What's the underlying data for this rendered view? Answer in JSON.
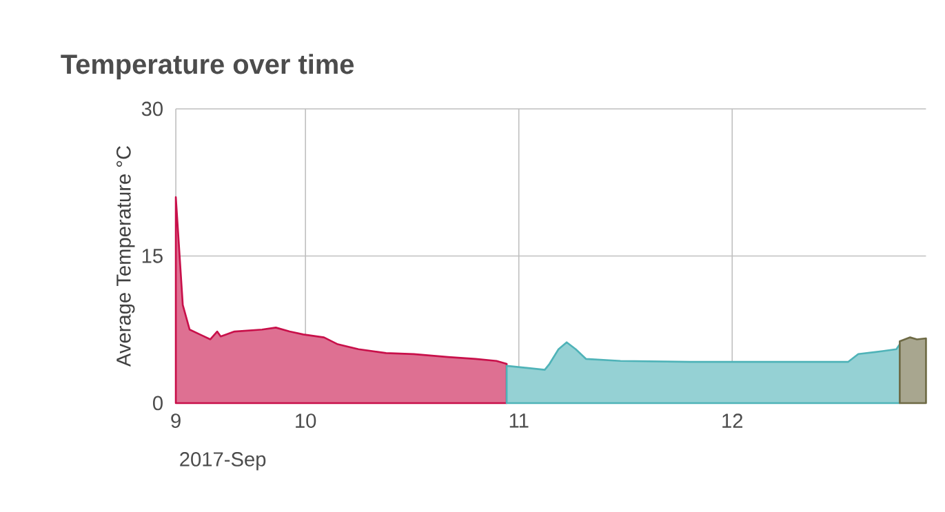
{
  "chart_data": {
    "type": "area",
    "title": "Temperature over time",
    "xlabel": "2017-Sep",
    "ylabel": "Average Temperature °C",
    "xlim": [
      "2017-09-09T09:25",
      "2017-09-12T21:48"
    ],
    "ylim": [
      0,
      30
    ],
    "yticks": [
      0,
      15,
      30
    ],
    "xticks": [
      {
        "value": "2017-09-09T09:25",
        "label": "9"
      },
      {
        "value": "2017-09-10",
        "label": "10"
      },
      {
        "value": "2017-09-11",
        "label": "11"
      },
      {
        "value": "2017-09-12",
        "label": "12"
      }
    ],
    "grid": true,
    "series": [
      {
        "color": "#c8104a",
        "x": [
          "2017-09-09T09:25",
          "2017-09-09T10:12",
          "2017-09-09T10:58",
          "2017-09-09T12:08",
          "2017-09-09T13:18",
          "2017-09-09T14:04",
          "2017-09-09T14:28",
          "2017-09-09T16:01",
          "2017-09-09T19:07",
          "2017-09-09T20:40",
          "2017-09-09T22:13",
          "2017-09-09T23:46",
          "2017-09-10T02:05",
          "2017-09-10T03:38",
          "2017-09-10T05:58",
          "2017-09-10T09:04",
          "2017-09-10T12:11",
          "2017-09-10T16:03",
          "2017-09-10T19:09",
          "2017-09-10T21:29",
          "2017-09-10T22:38"
        ],
        "values": [
          21,
          10,
          7.5,
          7,
          6.5,
          7.3,
          6.8,
          7.3,
          7.5,
          7.7,
          7.3,
          7,
          6.7,
          6,
          5.5,
          5.1,
          5,
          4.7,
          4.5,
          4.3,
          4
        ]
      },
      {
        "color": "#4fb3b8",
        "x": [
          "2017-09-10T22:38",
          "2017-09-11T02:55",
          "2017-09-11T03:27",
          "2017-09-11T04:28",
          "2017-09-11T05:23",
          "2017-09-11T06:24",
          "2017-09-11T07:34",
          "2017-09-11T11:26",
          "2017-09-11T19:12",
          "2017-09-12T13:02",
          "2017-09-12T14:11",
          "2017-09-12T16:55",
          "2017-09-12T18:28",
          "2017-09-12T18:51"
        ],
        "values": [
          3.8,
          3.4,
          4,
          5.5,
          6.2,
          5.5,
          4.5,
          4.3,
          4.2,
          4.2,
          5,
          5.3,
          5.5,
          6
        ]
      },
      {
        "color": "#6e6a45",
        "x": [
          "2017-09-12T18:51",
          "2017-09-12T20:01",
          "2017-09-12T20:47",
          "2017-09-12T21:48"
        ],
        "values": [
          6.3,
          6.7,
          6.5,
          6.6
        ]
      }
    ]
  }
}
